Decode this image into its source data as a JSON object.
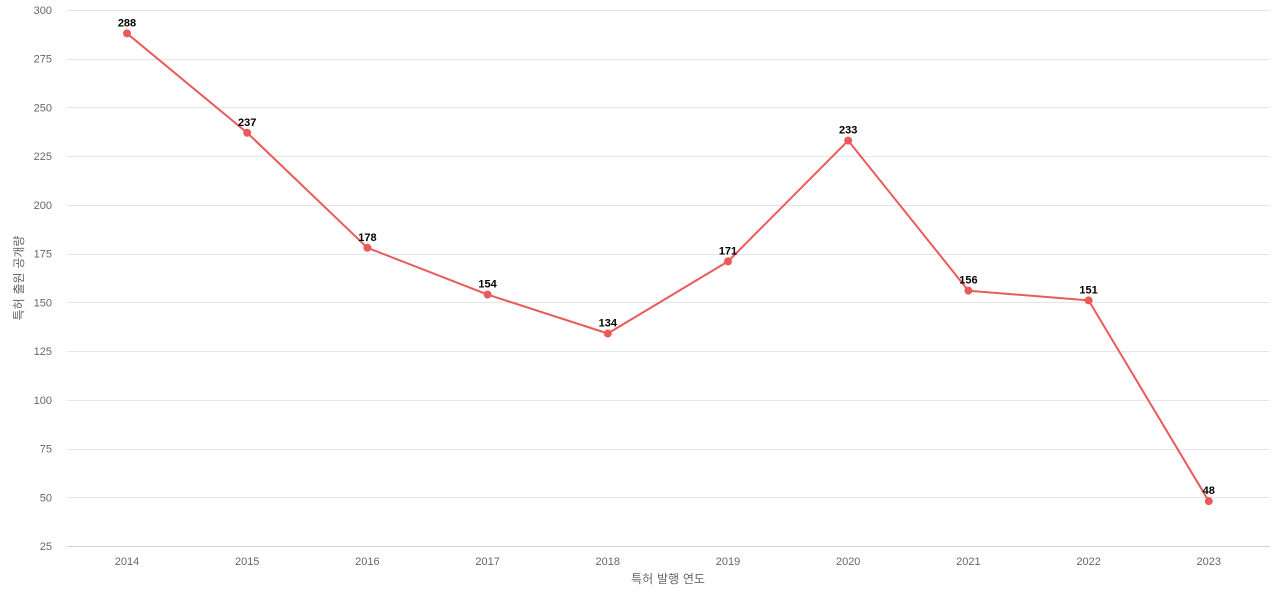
{
  "chart_data": {
    "type": "line",
    "title": "",
    "xlabel": "특허 발행 연도",
    "ylabel": "특허 출원 공개량",
    "categories": [
      "2014",
      "2015",
      "2016",
      "2017",
      "2018",
      "2019",
      "2020",
      "2021",
      "2022",
      "2023"
    ],
    "series": [
      {
        "values": [
          288,
          237,
          178,
          154,
          134,
          171,
          233,
          156,
          151,
          48
        ],
        "color": "#eb5a5a"
      }
    ],
    "ylim": [
      25,
      300
    ],
    "yticks": [
      25,
      50,
      75,
      100,
      125,
      150,
      175,
      200,
      225,
      250,
      275,
      300
    ],
    "grid": true,
    "data_labels": true
  }
}
